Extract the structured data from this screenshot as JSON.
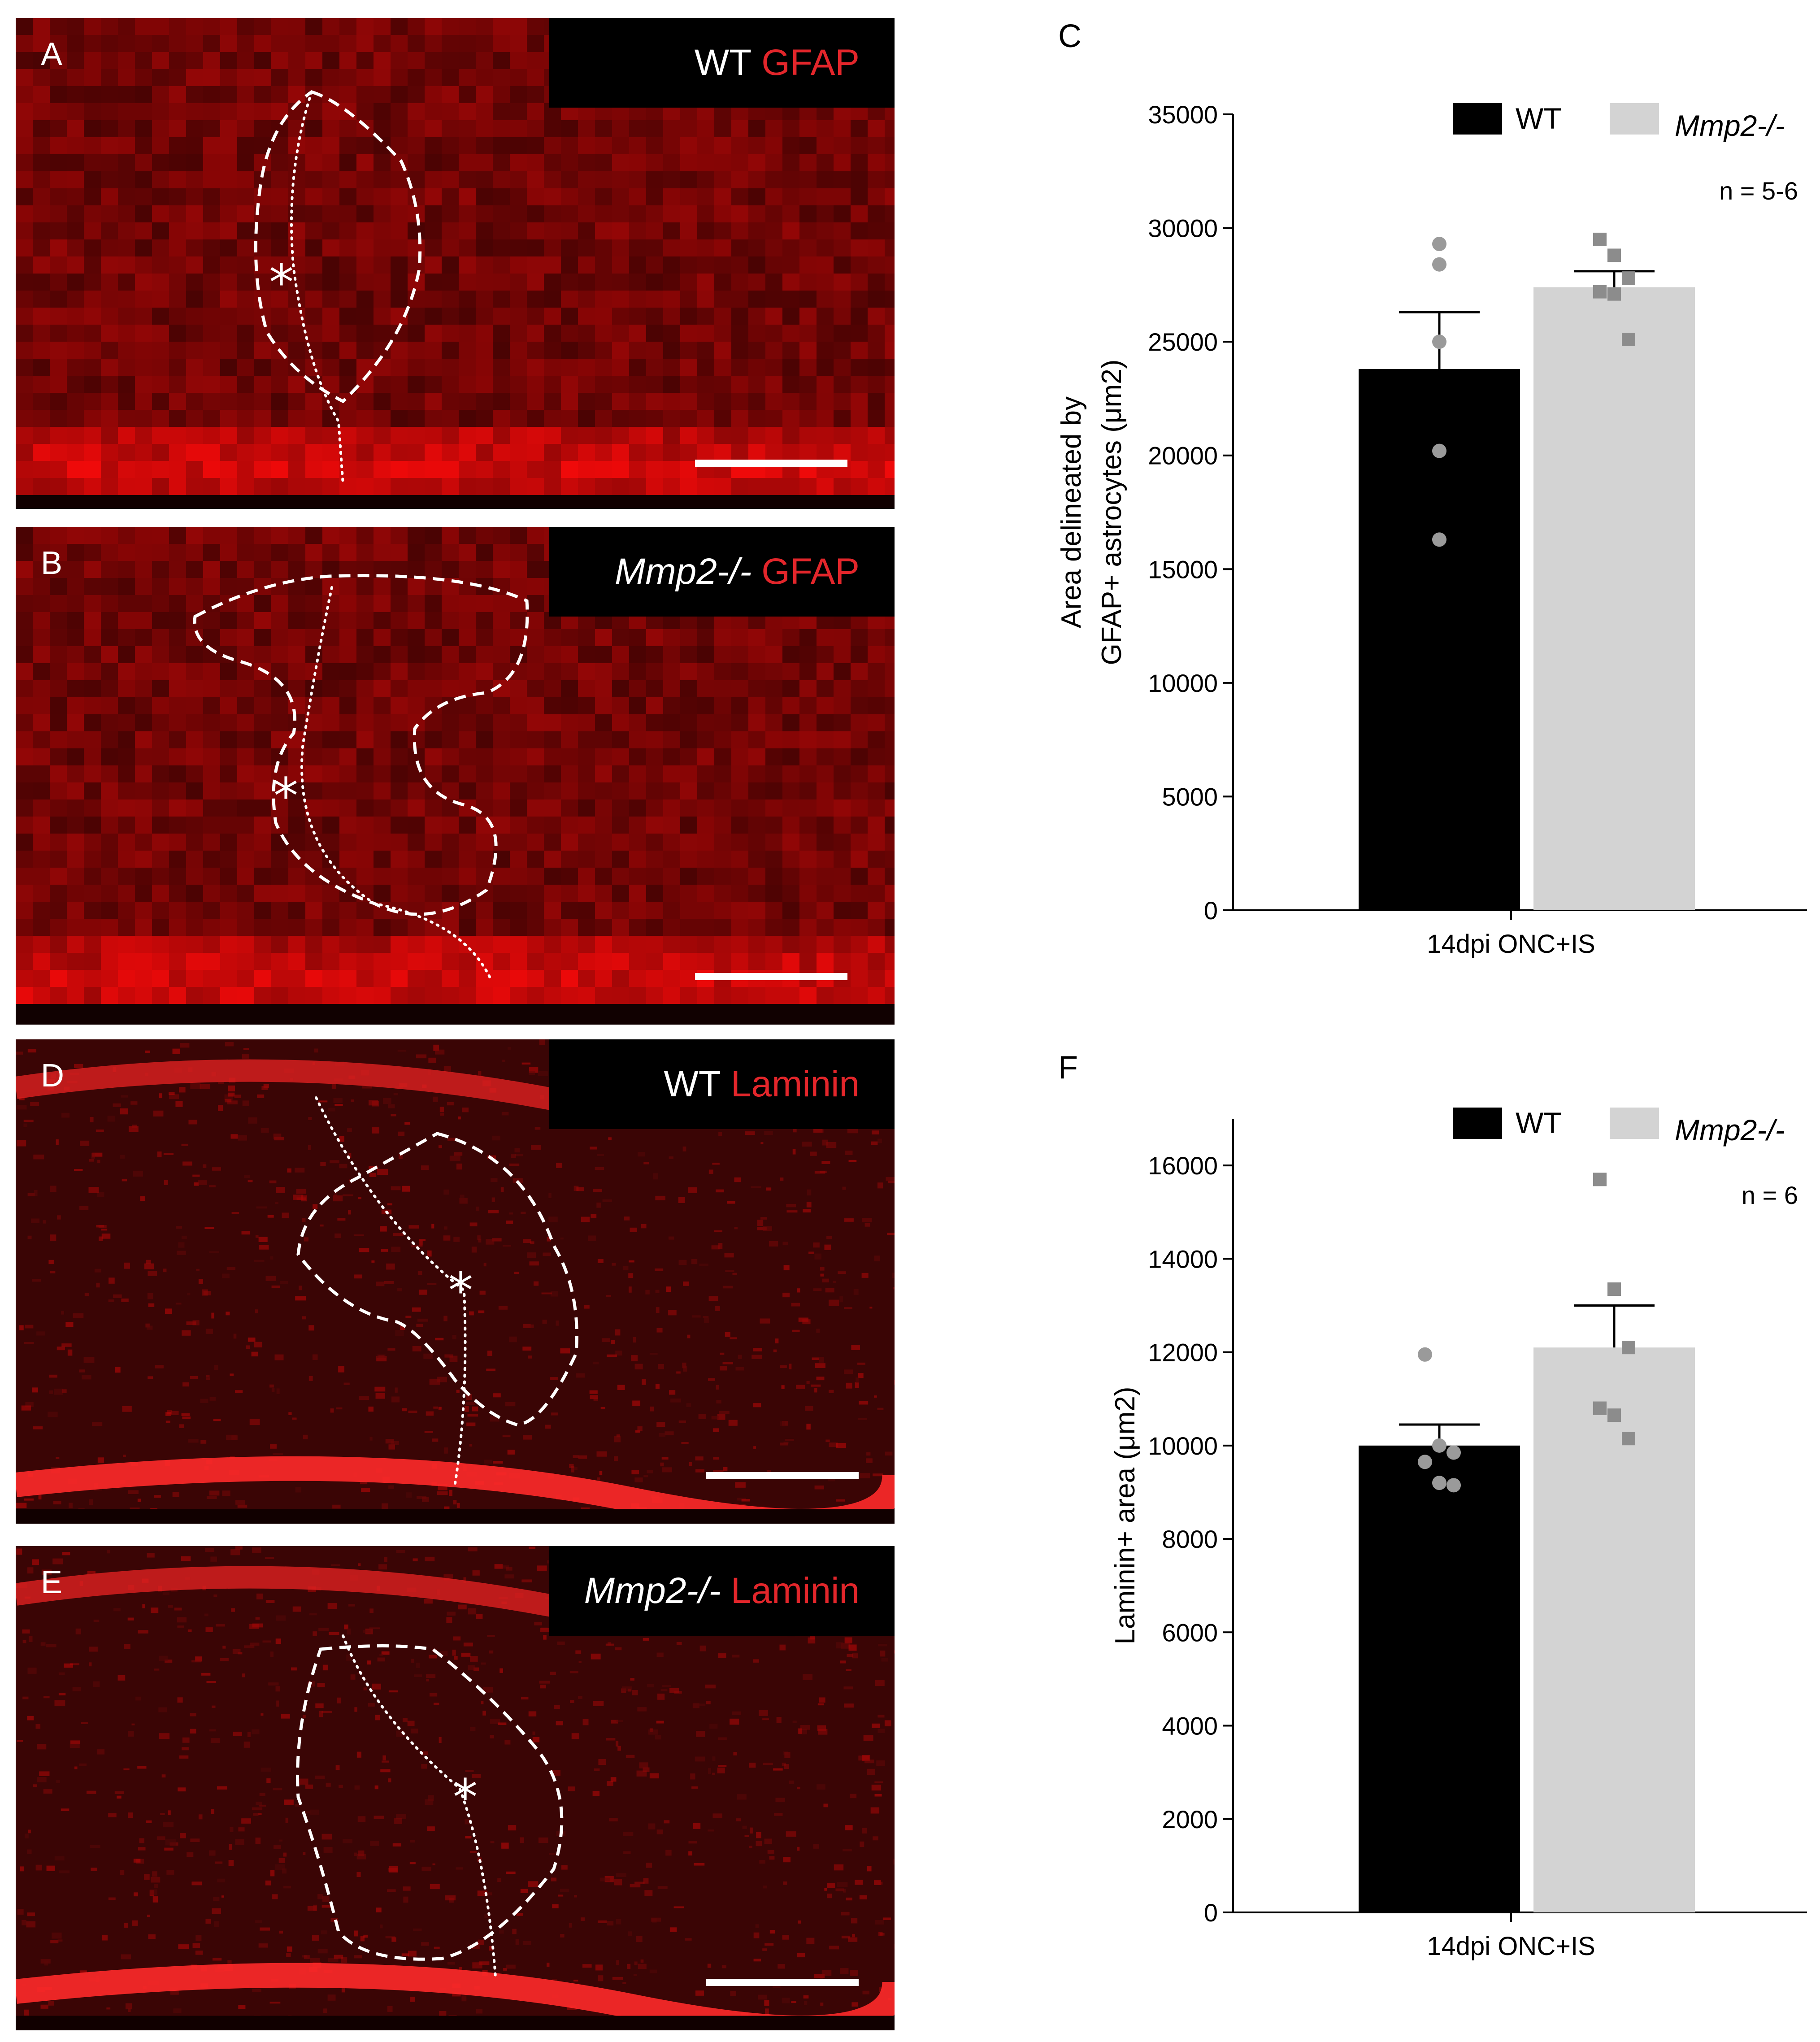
{
  "panels": [
    {
      "letter": "A",
      "label_prefix": "WT",
      "label_prefix_italic": false,
      "label_marker": "GFAP"
    },
    {
      "letter": "B",
      "label_prefix": "Mmp2-/-",
      "label_prefix_italic": true,
      "label_marker": "GFAP"
    },
    {
      "letter": "D",
      "label_prefix": "WT",
      "label_prefix_italic": false,
      "label_marker": "Laminin"
    },
    {
      "letter": "E",
      "label_prefix": "Mmp2-/-",
      "label_prefix_italic": true,
      "label_marker": "Laminin"
    }
  ],
  "lesion_marker": "*",
  "colors": {
    "wt_bar": "#000000",
    "mmp2_bar": "#d3d3d3",
    "wt_points": "#9a9a9a",
    "mmp2_points": "#8c8c8c",
    "stain": "#e3262b"
  },
  "chart_data": [
    {
      "panel_letter": "C",
      "type": "bar",
      "categories": [
        "14dpi ONC+IS"
      ],
      "series": [
        {
          "name": "WT",
          "mean": 23800,
          "sem": 2500,
          "points": [
            29300,
            28400,
            25000,
            20200,
            16300
          ],
          "point_shape": "circle"
        },
        {
          "name": "Mmp2-/-",
          "mean": 27400,
          "sem": 700,
          "points": [
            29500,
            28800,
            27800,
            27200,
            27100,
            25100
          ],
          "point_shape": "square"
        }
      ],
      "ylabel_line1": "Area delineated by",
      "ylabel_line2": "GFAP+ astrocytes (μm2)",
      "ylim": [
        0,
        35000
      ],
      "yticks": [
        0,
        5000,
        10000,
        15000,
        20000,
        25000,
        30000,
        35000
      ],
      "legend": [
        "WT",
        "Mmp2-/-"
      ],
      "legend_position": "top-right",
      "n_label": "n = 5-6"
    },
    {
      "panel_letter": "F",
      "type": "bar",
      "categories": [
        "14dpi ONC+IS"
      ],
      "series": [
        {
          "name": "WT",
          "mean": 10000,
          "sem": 450,
          "points": [
            11950,
            10000,
            9850,
            9650,
            9200,
            9150
          ],
          "point_shape": "circle"
        },
        {
          "name": "Mmp2-/-",
          "mean": 12100,
          "sem": 900,
          "points": [
            15700,
            13350,
            12100,
            10800,
            10650,
            10150
          ],
          "point_shape": "square"
        }
      ],
      "ylabel": "Laminin+ area (μm2)",
      "ylim": [
        0,
        17000
      ],
      "yticks": [
        0,
        2000,
        4000,
        6000,
        8000,
        10000,
        12000,
        14000,
        16000
      ],
      "legend": [
        "WT",
        "Mmp2-/-"
      ],
      "legend_position": "top-right",
      "n_label": "n = 6"
    }
  ]
}
